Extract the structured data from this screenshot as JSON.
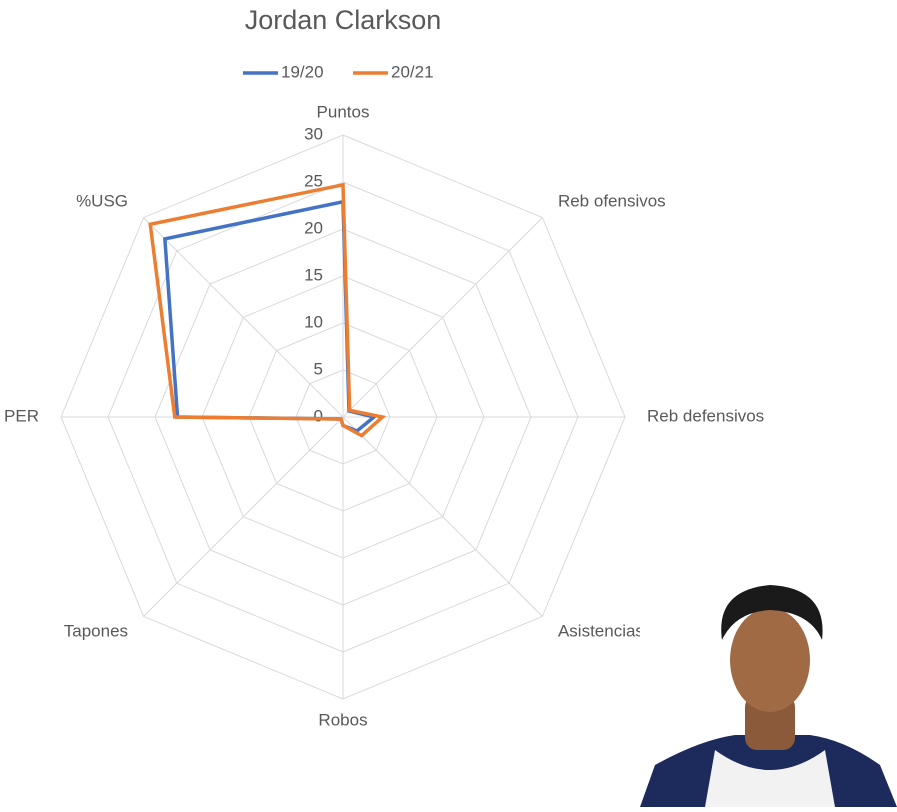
{
  "chart_data": {
    "type": "radar",
    "title": "Jordan Clarkson",
    "categories": [
      "Puntos",
      "Reb ofensivos",
      "Reb defensivos",
      "Asistencias",
      "Robos",
      "Tapones",
      "PER",
      "%USG"
    ],
    "series": [
      {
        "name": "19/20",
        "color": "#4472c4",
        "values": [
          22.9,
          0.9,
          3.3,
          2.1,
          0.9,
          0.3,
          17.6,
          26.8
        ]
      },
      {
        "name": "20/21",
        "color": "#ed7d31",
        "values": [
          24.7,
          1.0,
          4.2,
          2.8,
          0.9,
          0.3,
          17.9,
          29.0
        ]
      }
    ],
    "rlim": [
      0,
      30
    ],
    "rticks": [
      0,
      5,
      10,
      15,
      20,
      25,
      30
    ],
    "grid": true,
    "legend": "top"
  }
}
